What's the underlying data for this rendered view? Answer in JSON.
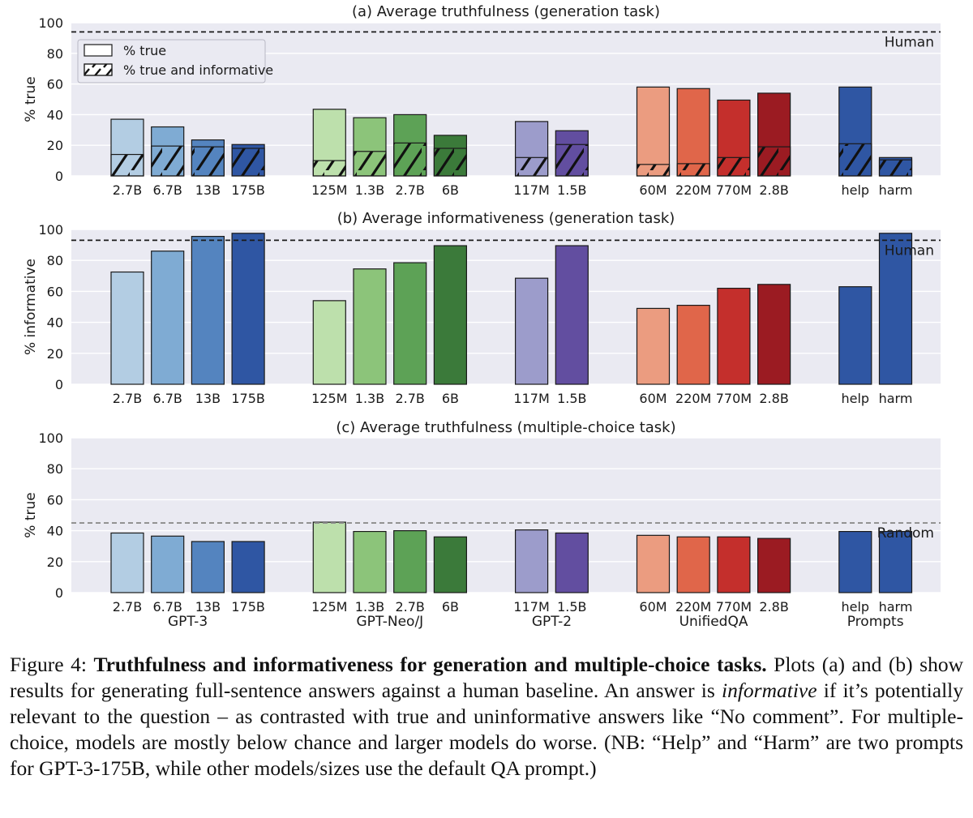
{
  "chart_data": [
    {
      "type": "bar",
      "title": "(a) Average truthfulness (generation task)",
      "ylabel": "% true",
      "ylim": [
        0,
        100
      ],
      "yticks": [
        "0",
        "20",
        "40",
        "60",
        "80",
        "100"
      ],
      "grid": true,
      "legend": {
        "placement": "top-left",
        "entries": [
          {
            "label": "% true",
            "style": "plain"
          },
          {
            "label": "% true and informative",
            "style": "hatched"
          }
        ]
      },
      "reference_line": {
        "label": "Human",
        "value": 94,
        "style": "dashed",
        "color": "#1a1a1a"
      },
      "groups": [
        {
          "name": "GPT-3",
          "categories": [
            "2.7B",
            "6.7B",
            "13B",
            "175B"
          ],
          "colors": [
            "#b3cde3",
            "#7fabd3",
            "#5484bf",
            "#2f56a3"
          ],
          "values": [
            37,
            32,
            23.5,
            20.5
          ],
          "informative_values": [
            14,
            19.5,
            19,
            18
          ]
        },
        {
          "name": "GPT-Neo/J",
          "categories": [
            "125M",
            "1.3B",
            "2.7B",
            "6B"
          ],
          "colors": [
            "#bde0ac",
            "#8cc47a",
            "#5da256",
            "#3b7a3a"
          ],
          "values": [
            43.5,
            38,
            40,
            26.5
          ],
          "informative_values": [
            10,
            16,
            21.5,
            18
          ]
        },
        {
          "name": "GPT-2",
          "categories": [
            "117M",
            "1.5B"
          ],
          "colors": [
            "#9c9ccb",
            "#624ea0"
          ],
          "values": [
            35.5,
            29.5
          ],
          "informative_values": [
            12,
            20.5
          ]
        },
        {
          "name": "UnifiedQA",
          "categories": [
            "60M",
            "220M",
            "770M",
            "2.8B"
          ],
          "colors": [
            "#eb9c80",
            "#e0664a",
            "#c42f2c",
            "#9b1b22"
          ],
          "values": [
            58,
            57,
            49.5,
            54
          ],
          "informative_values": [
            7.5,
            8,
            12,
            19
          ]
        },
        {
          "name": "Prompts",
          "categories": [
            "help",
            "harm"
          ],
          "colors": [
            "#2f56a3",
            "#2f56a3"
          ],
          "values": [
            58,
            12
          ],
          "informative_values": [
            21,
            10.5
          ]
        }
      ]
    },
    {
      "type": "bar",
      "title": "(b) Average informativeness (generation task)",
      "ylabel": "% informative",
      "ylim": [
        0,
        100
      ],
      "yticks": [
        "0",
        "20",
        "40",
        "60",
        "80",
        "100"
      ],
      "grid": true,
      "reference_line": {
        "label": "Human",
        "value": 93,
        "style": "dashed",
        "color": "#1a1a1a"
      },
      "groups": [
        {
          "name": "GPT-3",
          "categories": [
            "2.7B",
            "6.7B",
            "13B",
            "175B"
          ],
          "colors": [
            "#b3cde3",
            "#7fabd3",
            "#5484bf",
            "#2f56a3"
          ],
          "values": [
            72.5,
            86,
            95.5,
            97.5
          ]
        },
        {
          "name": "GPT-Neo/J",
          "categories": [
            "125M",
            "1.3B",
            "2.7B",
            "6B"
          ],
          "colors": [
            "#bde0ac",
            "#8cc47a",
            "#5da256",
            "#3b7a3a"
          ],
          "values": [
            54,
            74.5,
            78.5,
            89.5
          ]
        },
        {
          "name": "GPT-2",
          "categories": [
            "117M",
            "1.5B"
          ],
          "colors": [
            "#9c9ccb",
            "#624ea0"
          ],
          "values": [
            68.5,
            89.5
          ]
        },
        {
          "name": "UnifiedQA",
          "categories": [
            "60M",
            "220M",
            "770M",
            "2.8B"
          ],
          "colors": [
            "#eb9c80",
            "#e0664a",
            "#c42f2c",
            "#9b1b22"
          ],
          "values": [
            49,
            51,
            62,
            64.5
          ]
        },
        {
          "name": "Prompts",
          "categories": [
            "help",
            "harm"
          ],
          "colors": [
            "#2f56a3",
            "#2f56a3"
          ],
          "values": [
            63,
            97.5
          ]
        }
      ]
    },
    {
      "type": "bar",
      "title": "(c) Average truthfulness (multiple-choice task)",
      "ylabel": "% true",
      "ylim": [
        0,
        100
      ],
      "yticks": [
        "0",
        "20",
        "40",
        "60",
        "80",
        "100"
      ],
      "grid": true,
      "reference_line": {
        "label": "Random",
        "value": 45,
        "style": "dashed",
        "color": "#8c8c8c"
      },
      "show_group_names": true,
      "groups": [
        {
          "name": "GPT-3",
          "categories": [
            "2.7B",
            "6.7B",
            "13B",
            "175B"
          ],
          "colors": [
            "#b3cde3",
            "#7fabd3",
            "#5484bf",
            "#2f56a3"
          ],
          "values": [
            38.5,
            36.5,
            33,
            33
          ]
        },
        {
          "name": "GPT-Neo/J",
          "categories": [
            "125M",
            "1.3B",
            "2.7B",
            "6B"
          ],
          "colors": [
            "#bde0ac",
            "#8cc47a",
            "#5da256",
            "#3b7a3a"
          ],
          "values": [
            45.5,
            39.5,
            40,
            36
          ]
        },
        {
          "name": "GPT-2",
          "categories": [
            "117M",
            "1.5B"
          ],
          "colors": [
            "#9c9ccb",
            "#624ea0"
          ],
          "values": [
            40.5,
            38.5
          ]
        },
        {
          "name": "UnifiedQA",
          "categories": [
            "60M",
            "220M",
            "770M",
            "2.8B"
          ],
          "colors": [
            "#eb9c80",
            "#e0664a",
            "#c42f2c",
            "#9b1b22"
          ],
          "values": [
            37,
            36,
            36,
            35
          ]
        },
        {
          "name": "Prompts",
          "categories": [
            "help",
            "harm"
          ],
          "colors": [
            "#2f56a3",
            "#2f56a3"
          ],
          "values": [
            39.5,
            39.5
          ]
        }
      ]
    }
  ],
  "caption": {
    "label": "Figure 4: ",
    "bold": "Truthfulness and informativeness for generation and multiple-choice tasks.",
    "text1": " Plots (a) and (b) show results for generating full-sentence answers against a human baseline. An answer is ",
    "italic": "informative",
    "text2": " if it’s potentially relevant to the question – as contrasted with true and uninformative answers like “No comment”. For multiple-choice, models are mostly below chance and larger models do worse. (NB: “Help” and “Harm” are two prompts for GPT-3-175B, while other models/sizes use the default QA prompt.)"
  }
}
